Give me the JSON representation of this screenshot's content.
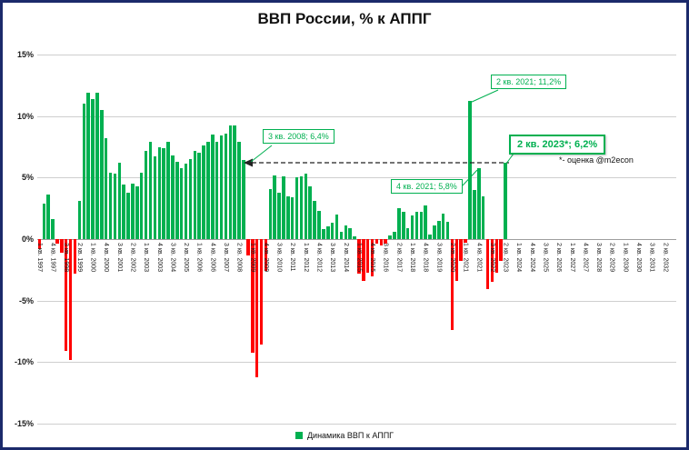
{
  "chart_data": {
    "type": "bar",
    "title": "ВВП России, % к АППГ",
    "legend": [
      "Динамика ВВП к АППГ"
    ],
    "ylim": [
      -15,
      15
    ],
    "ytick_step": 5,
    "ytick_labels": [
      "15%",
      "10%",
      "5%",
      "0%",
      "-5%",
      "-10%",
      "-15%"
    ],
    "positive_color": "#00B050",
    "negative_color": "#FF0000",
    "values_start_quarter": "1 кв. 1997",
    "values_end_quarter": "2 кв. 2023",
    "x_axis_end": "4 кв. 2032",
    "x_axis_total_quarters": 144,
    "x_label_stride_quarters": 3,
    "values": [
      -0.8,
      2.9,
      3.6,
      1.6,
      -0.4,
      -1.1,
      -9.1,
      -9.8,
      -2.8,
      3.1,
      11.0,
      11.9,
      11.4,
      11.9,
      10.5,
      8.2,
      5.4,
      5.3,
      6.2,
      4.4,
      3.8,
      4.5,
      4.3,
      5.4,
      7.2,
      7.9,
      6.7,
      7.5,
      7.4,
      7.9,
      6.8,
      6.3,
      5.8,
      6.1,
      6.5,
      7.2,
      7.0,
      7.6,
      7.9,
      8.5,
      7.9,
      8.4,
      8.6,
      9.2,
      9.2,
      7.9,
      6.4,
      -1.3,
      -9.2,
      -11.2,
      -8.6,
      -2.6,
      4.1,
      5.2,
      3.8,
      5.1,
      3.5,
      3.4,
      5.0,
      5.1,
      5.3,
      4.3,
      3.1,
      2.3,
      0.8,
      1.0,
      1.3,
      2.0,
      0.6,
      1.1,
      0.9,
      0.2,
      -2.8,
      -3.4,
      -2.7,
      -3.0,
      -0.4,
      -0.5,
      -0.4,
      0.3,
      0.6,
      2.5,
      2.2,
      0.9,
      1.9,
      2.2,
      2.2,
      2.7,
      0.4,
      1.1,
      1.5,
      2.1,
      1.4,
      -7.4,
      -3.4,
      -1.8,
      -0.3,
      11.2,
      4.0,
      5.8,
      3.5,
      -4.1,
      -3.5,
      -2.7,
      -1.8,
      6.2
    ],
    "x_labels": [
      "1 кв. 1997",
      "4 кв. 1997",
      "3 кв. 1998",
      "2 кв. 1999",
      "1 кв. 2000",
      "4 кв. 2000",
      "3 кв. 2001",
      "2 кв. 2002",
      "1 кв. 2003",
      "4 кв. 2003",
      "3 кв. 2004",
      "2 кв. 2005",
      "1 кв. 2006",
      "4 кв. 2006",
      "3 кв. 2007",
      "2 кв. 2008",
      "1 кв. 2009",
      "4 кв. 2009",
      "3 кв. 2010",
      "2 кв. 2011",
      "1 кв. 2012",
      "4 кв. 2012",
      "3 кв. 2013",
      "2 кв. 2014",
      "1 кв. 2015",
      "4 кв. 2015",
      "3 кв. 2016",
      "2 кв. 2017",
      "1 кв. 2018",
      "4 кв. 2018",
      "3 кв. 2019",
      "2 кв. 2020",
      "1 кв. 2021",
      "4 кв. 2021",
      "3 кв. 2022",
      "2 кв. 2023",
      "1 кв. 2024",
      "4 кв. 2024",
      "3 кв. 2025",
      "2 кв. 2026",
      "1 кв. 2027",
      "4 кв. 2027",
      "3 кв. 2028",
      "2 кв. 2029",
      "1 кв. 2030",
      "4 кв. 2030",
      "3 кв. 2031",
      "2 кв. 2032"
    ],
    "annotations": [
      {
        "text": "3 кв. 2008; 6,4%",
        "quarter": "3 кв. 2008",
        "value": 6.4
      },
      {
        "text": "2 кв. 2021; 11,2%",
        "quarter": "2 кв. 2021",
        "value": 11.2
      },
      {
        "text": "4 кв. 2021; 5,8%",
        "quarter": "4 кв. 2021",
        "value": 5.8
      },
      {
        "text": "2 кв. 2023*; 6,2%",
        "quarter": "2 кв. 2023",
        "value": 6.2
      }
    ],
    "footnote": "*- оценка @m2econ"
  }
}
